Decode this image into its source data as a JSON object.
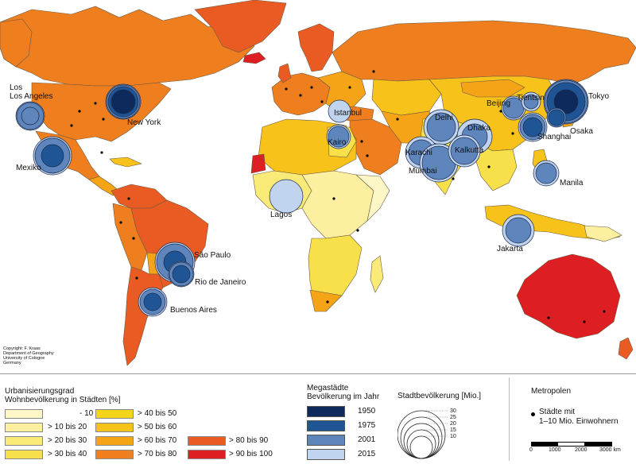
{
  "title": "",
  "copyright_lines": [
    "Copyright: F. Kraas",
    "Department of Geography",
    "University of Cologne",
    "Germany"
  ],
  "cities": [
    {
      "label": "Los Angeles",
      "line2": ""
    },
    {
      "label": "New York"
    },
    {
      "label": "Mexiko"
    },
    {
      "label": "São Paulo"
    },
    {
      "label": "Rio de Janeiro"
    },
    {
      "label": "Buenos Aires"
    },
    {
      "label": "Lagos"
    },
    {
      "label": "Kairo"
    },
    {
      "label": "Istanbul"
    },
    {
      "label": "Delhi"
    },
    {
      "label": "Dhaka"
    },
    {
      "label": "Karachi"
    },
    {
      "label": "Kalkutta"
    },
    {
      "label": "Mumbai"
    },
    {
      "label": "Beijing"
    },
    {
      "label": "Tientsin"
    },
    {
      "label": "Tokyo"
    },
    {
      "label": "Osaka"
    },
    {
      "label": "Shanghai"
    },
    {
      "label": "Manila"
    },
    {
      "label": "Jakarta"
    }
  ],
  "legend": {
    "urbanization": {
      "title_line1": "Urbanisierungsgrad",
      "title_line2": "Wohnbevölkerung in Städten [%]",
      "classes": [
        {
          "label": "- 10",
          "color": "#fdf7c8"
        },
        {
          "label": "> 10 bis 20",
          "color": "#fcf0a0"
        },
        {
          "label": "> 20 bis 30",
          "color": "#faea78"
        },
        {
          "label": "> 30 bis 40",
          "color": "#f7e04a"
        },
        {
          "label": "> 40 bis 50",
          "color": "#f4d418"
        },
        {
          "label": "> 50 bis 60",
          "color": "#f7c21a"
        },
        {
          "label": "> 60 bis 70",
          "color": "#f5a418"
        },
        {
          "label": "> 70 bis 80",
          "color": "#ef7e1e"
        },
        {
          "label": "> 80 bis   90",
          "color": "#ea5b24"
        },
        {
          "label": "> 90 bis 100",
          "color": "#dd1e22"
        }
      ]
    },
    "megacities": {
      "title_line1": "Megastädte",
      "title_line2": "Bevölkerung im Jahr",
      "years": [
        {
          "label": "1950",
          "color": "#0e2a5c"
        },
        {
          "label": "1975",
          "color": "#1f5595"
        },
        {
          "label": "2001",
          "color": "#5f85bd"
        },
        {
          "label": "2015",
          "color": "#c0d3ef"
        }
      ]
    },
    "population": {
      "title": "Stadtbevölkerung [Mio.]",
      "values": [
        "30",
        "25",
        "20",
        "15",
        "10"
      ]
    },
    "metropolen": {
      "title": "Metropolen",
      "entry_line1": "Städte mit",
      "entry_line2": "1–10 Mio. Einwohnern"
    },
    "scale": {
      "ticks": [
        "0",
        "1000",
        "2000",
        "3000 km"
      ]
    }
  }
}
